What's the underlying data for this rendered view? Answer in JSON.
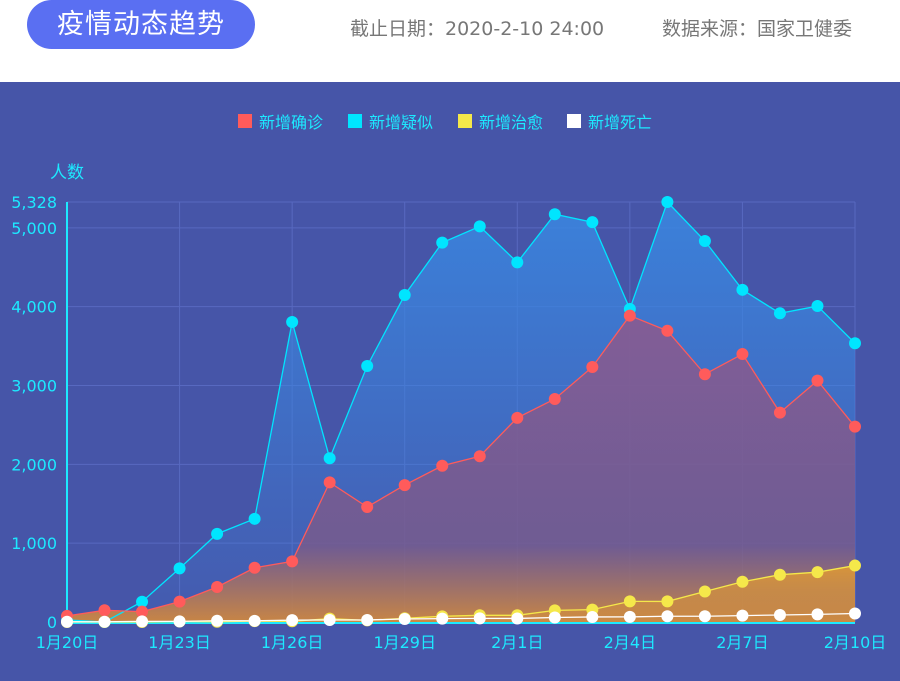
{
  "header": {
    "title": "疫情动态趋势",
    "date_label": "截止日期：2020-2-10 24:00",
    "source_label": "数据来源：国家卫健委"
  },
  "chart_data": {
    "type": "line",
    "ylabel": "人数",
    "ylim": [
      0,
      5328
    ],
    "yticks": [
      "0",
      "1,000",
      "2,000",
      "3,000",
      "4,000",
      "5,000",
      "5,328"
    ],
    "ytick_values": [
      0,
      1000,
      2000,
      3000,
      4000,
      5000,
      5328
    ],
    "grid": true,
    "legend": "top-center",
    "categories": [
      "1月20日",
      "1月21日",
      "1月22日",
      "1月23日",
      "1月24日",
      "1月25日",
      "1月26日",
      "1月27日",
      "1月28日",
      "1月29日",
      "1月30日",
      "1月31日",
      "2月1日",
      "2月2日",
      "2月3日",
      "2月4日",
      "2月5日",
      "2月6日",
      "2月7日",
      "2月8日",
      "2月9日",
      "2月10日"
    ],
    "xtick_labels": [
      "1月20日",
      "1月23日",
      "1月26日",
      "1月29日",
      "2月1日",
      "2月4日",
      "2月7日",
      "2月10日"
    ],
    "series": [
      {
        "name": "新增确诊",
        "color": "#ff5b5b",
        "values": [
          77,
          149,
          131,
          259,
          444,
          688,
          769,
          1771,
          1459,
          1737,
          1982,
          2102,
          2590,
          2829,
          3235,
          3887,
          3694,
          3143,
          3399,
          2656,
          3062,
          2478
        ]
      },
      {
        "name": "新增疑似",
        "color": "#00e5ff",
        "values": [
          27,
          0,
          257,
          680,
          1118,
          1309,
          3806,
          2077,
          3248,
          4148,
          4812,
          5019,
          4562,
          5173,
          5072,
          3971,
          5328,
          4833,
          4214,
          3916,
          4008,
          3536
        ]
      },
      {
        "name": "新增治愈",
        "color": "#f5e84a",
        "values": [
          0,
          0,
          0,
          6,
          3,
          11,
          9,
          43,
          21,
          47,
          72,
          85,
          85,
          147,
          157,
          262,
          261,
          387,
          510,
          600,
          632,
          716
        ]
      },
      {
        "name": "新增死亡",
        "color": "#ffffff",
        "values": [
          3,
          3,
          8,
          8,
          16,
          15,
          24,
          25,
          26,
          38,
          43,
          46,
          45,
          57,
          64,
          65,
          73,
          73,
          81,
          89,
          97,
          108
        ]
      }
    ]
  }
}
